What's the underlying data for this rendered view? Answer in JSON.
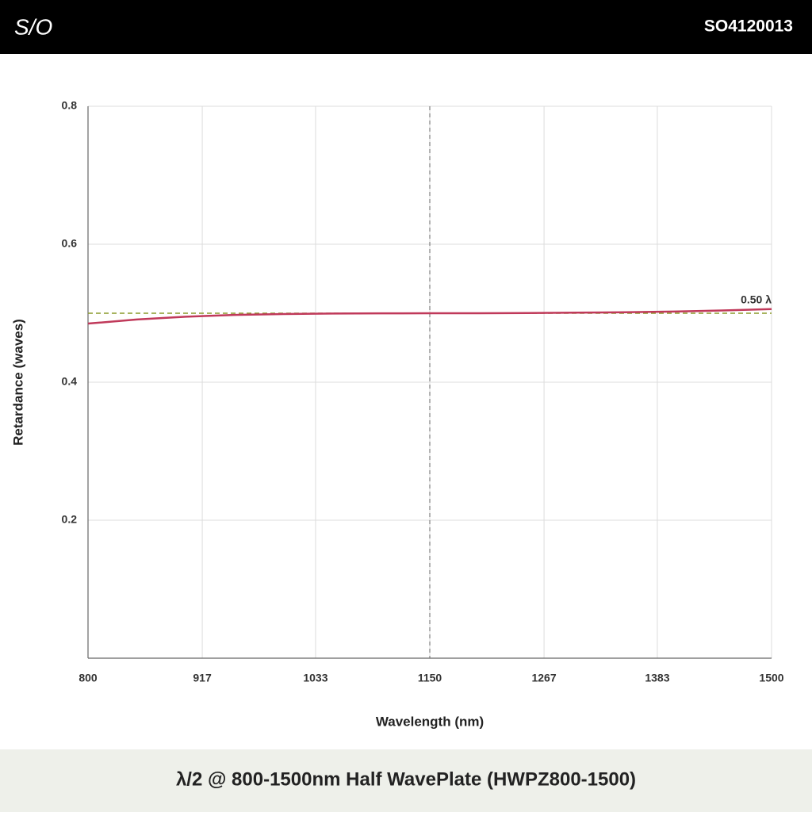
{
  "header": {
    "logo": "S/O",
    "code": "SO4120013"
  },
  "chart_data": {
    "type": "line",
    "title": "λ/2 @ 800-1500nm Half WavePlate (HWPZ800-1500)",
    "x_label": "Wavelength (nm)",
    "y_label": "Retardance (waves)",
    "x": [
      800,
      850,
      900,
      950,
      1000,
      1050,
      1100,
      1150,
      1200,
      1250,
      1300,
      1350,
      1400,
      1450,
      1500
    ],
    "values": [
      0.485,
      0.491,
      0.495,
      0.4975,
      0.4988,
      0.4995,
      0.4998,
      0.5,
      0.5,
      0.5003,
      0.5008,
      0.5015,
      0.5025,
      0.504,
      0.506
    ],
    "color": "#c0395a",
    "xlim": [
      800,
      1500
    ],
    "xticks": [
      800,
      917,
      1033,
      1150,
      1267,
      1383,
      1500
    ],
    "ylim": [
      0,
      0.8
    ],
    "yticks": [
      0.2,
      0.4,
      0.6,
      0.8
    ],
    "grid": true,
    "reference_line": {
      "value": 0.5,
      "label": "0.50 λ",
      "color": "#8a9a2a"
    },
    "center_line": 1150
  }
}
